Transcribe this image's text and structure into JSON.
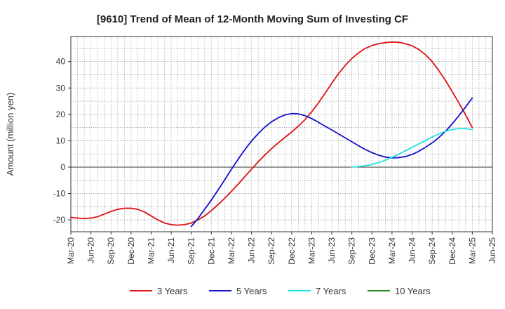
{
  "chart_data": {
    "type": "line",
    "title": "[9610]  Trend of Mean of 12-Month Moving Sum of Investing CF",
    "xlabel": "",
    "ylabel": "Amount (million yen)",
    "ylim": [
      -24.5,
      49.5
    ],
    "yticks": [
      -20,
      -10,
      0,
      10,
      20,
      30,
      40
    ],
    "x_ticks": [
      "Mar-20",
      "Jun-20",
      "Sep-20",
      "Dec-20",
      "Mar-21",
      "Jun-21",
      "Sep-21",
      "Dec-21",
      "Mar-22",
      "Jun-22",
      "Sep-22",
      "Dec-22",
      "Mar-23",
      "Jun-23",
      "Sep-23",
      "Dec-23",
      "Mar-24",
      "Jun-24",
      "Sep-24",
      "Dec-24",
      "Mar-25",
      "Jun-25"
    ],
    "grid": true,
    "legend_position": "bottom",
    "series": [
      {
        "name": "3 Years",
        "color": "#dd1111",
        "x": [
          0,
          1,
          2,
          3,
          4,
          5,
          6,
          7,
          8,
          9,
          10,
          11,
          12,
          13,
          14,
          15,
          16,
          17,
          18,
          19,
          20,
          21,
          22,
          23,
          24,
          25,
          26,
          27,
          28,
          29,
          30,
          31,
          32,
          33,
          34,
          35,
          36,
          37,
          38,
          39,
          40,
          41,
          42,
          43,
          44,
          45,
          46,
          47,
          48,
          49,
          50,
          51,
          52,
          53,
          54,
          55,
          56,
          57,
          58,
          59,
          60
        ],
        "values": [
          -19.0,
          -19.3,
          -19.5,
          -19.3,
          -18.8,
          -17.8,
          -16.8,
          -16.0,
          -15.6,
          -15.6,
          -16.0,
          -17.0,
          -18.5,
          -20.0,
          -21.2,
          -21.8,
          -22.0,
          -21.8,
          -21.2,
          -20.0,
          -18.5,
          -16.5,
          -14.2,
          -11.8,
          -9.2,
          -6.5,
          -3.6,
          -0.8,
          2.0,
          4.6,
          7.0,
          9.2,
          11.3,
          13.3,
          15.5,
          18.0,
          21.0,
          24.3,
          28.0,
          31.8,
          35.4,
          38.5,
          41.2,
          43.3,
          45.0,
          46.1,
          46.8,
          47.2,
          47.4,
          47.3,
          46.8,
          46.0,
          44.6,
          42.6,
          40.0,
          36.6,
          32.8,
          28.6,
          24.3,
          19.8,
          15.0
        ]
      },
      {
        "name": "5 Years",
        "color": "#1111cc",
        "x": [
          18,
          19,
          20,
          21,
          22,
          23,
          24,
          25,
          26,
          27,
          28,
          29,
          30,
          31,
          32,
          33,
          34,
          35,
          36,
          37,
          38,
          39,
          40,
          41,
          42,
          43,
          44,
          45,
          46,
          47,
          48,
          49,
          50,
          51,
          52,
          53,
          54,
          55,
          56,
          57,
          58,
          59,
          60
        ],
        "values": [
          -22.5,
          -19.5,
          -16.0,
          -12.5,
          -8.7,
          -4.8,
          -0.8,
          3.0,
          6.6,
          9.9,
          12.7,
          15.2,
          17.2,
          18.7,
          19.8,
          20.3,
          20.2,
          19.5,
          18.4,
          17.0,
          15.5,
          14.1,
          12.6,
          11.1,
          9.6,
          8.1,
          6.7,
          5.5,
          4.5,
          3.8,
          3.5,
          3.6,
          4.0,
          4.8,
          6.0,
          7.5,
          9.2,
          11.2,
          13.6,
          16.4,
          19.5,
          22.8,
          26.2
        ]
      },
      {
        "name": "7 Years",
        "color": "#22e0e0",
        "x": [
          42,
          43,
          44,
          45,
          46,
          47,
          48,
          49,
          50,
          51,
          52,
          53,
          54,
          55,
          56,
          57,
          58,
          59,
          60
        ],
        "values": [
          0.0,
          0.2,
          0.5,
          1.0,
          1.7,
          2.6,
          3.7,
          4.9,
          6.2,
          7.5,
          8.8,
          10.1,
          11.4,
          12.6,
          13.6,
          14.3,
          14.6,
          14.6,
          14.2
        ]
      },
      {
        "name": "10 Years",
        "color": "#228822",
        "x": [],
        "values": []
      }
    ]
  }
}
